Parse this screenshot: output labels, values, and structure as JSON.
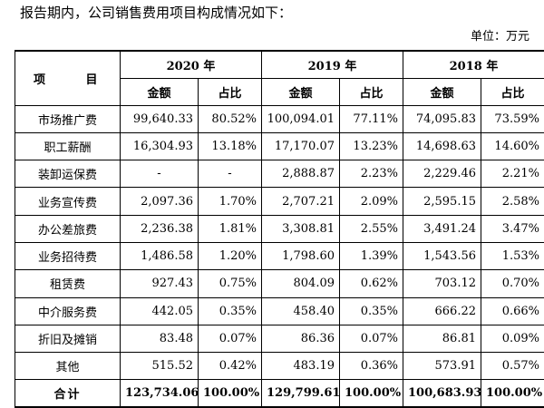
{
  "intro": "报告期内，公司销售费用项目构成情况如下：",
  "unit": "单位：万元",
  "table": {
    "item_header": "项  目",
    "years": [
      "2020 年",
      "2019 年",
      "2018 年"
    ],
    "sub_headers": [
      "金额",
      "占比"
    ],
    "rows": [
      {
        "label": "市场推广费",
        "values": [
          "99,640.33",
          "80.52%",
          "100,094.01",
          "77.11%",
          "74,095.83",
          "73.59%"
        ]
      },
      {
        "label": "职工薪酬",
        "values": [
          "16,304.93",
          "13.18%",
          "17,170.07",
          "13.23%",
          "14,698.63",
          "14.60%"
        ]
      },
      {
        "label": "装卸运保费",
        "values": [
          "-",
          "-",
          "2,888.87",
          "2.23%",
          "2,229.46",
          "2.21%"
        ]
      },
      {
        "label": "业务宣传费",
        "values": [
          "2,097.36",
          "1.70%",
          "2,707.21",
          "2.09%",
          "2,595.15",
          "2.58%"
        ]
      },
      {
        "label": "办公差旅费",
        "values": [
          "2,236.38",
          "1.81%",
          "3,308.81",
          "2.55%",
          "3,491.24",
          "3.47%"
        ]
      },
      {
        "label": "业务招待费",
        "values": [
          "1,486.58",
          "1.20%",
          "1,798.60",
          "1.39%",
          "1,543.56",
          "1.53%"
        ]
      },
      {
        "label": "租赁费",
        "values": [
          "927.43",
          "0.75%",
          "804.09",
          "0.62%",
          "703.12",
          "0.70%"
        ]
      },
      {
        "label": "中介服务费",
        "values": [
          "442.05",
          "0.35%",
          "458.40",
          "0.35%",
          "666.22",
          "0.66%"
        ]
      },
      {
        "label": "折旧及摊销",
        "values": [
          "83.48",
          "0.07%",
          "86.36",
          "0.07%",
          "86.81",
          "0.09%"
        ]
      },
      {
        "label": "其他",
        "values": [
          "515.52",
          "0.42%",
          "483.19",
          "0.36%",
          "573.91",
          "0.57%"
        ]
      },
      {
        "label": "合计",
        "values": [
          "123,734.06",
          "100.00%",
          "129,799.61",
          "100.00%",
          "100,683.93",
          "100.00%"
        ]
      }
    ]
  }
}
